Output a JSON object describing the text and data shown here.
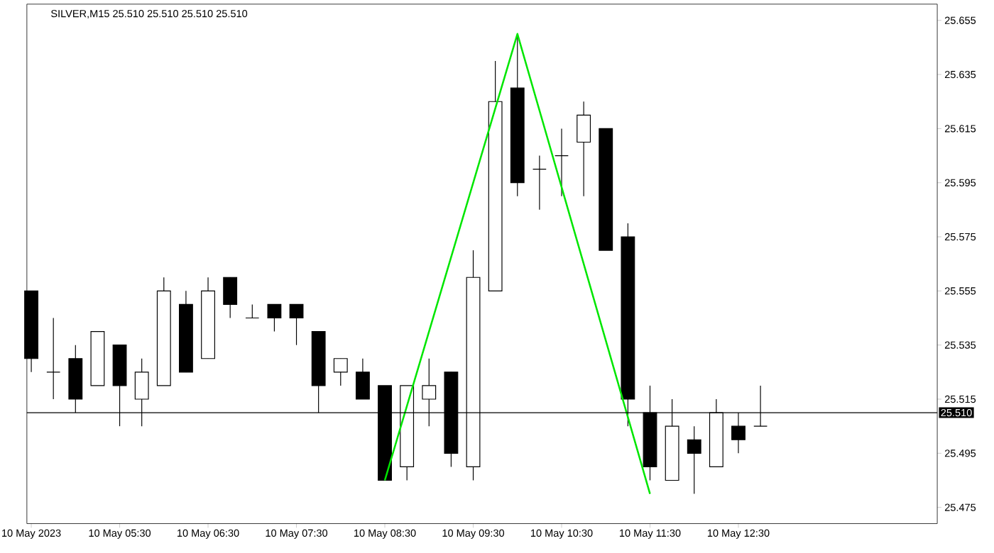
{
  "chart_data": {
    "type": "candlestick",
    "title": "SILVER,M15  25.510 25.510 25.510 25.510",
    "xlim": [
      "2023-05-10T04:27",
      "2023-05-10T14:45"
    ],
    "ylim": [
      25.469,
      25.661
    ],
    "xticks": [
      {
        "value": "2023-05-10T04:30",
        "label": "10 May 2023"
      },
      {
        "value": "2023-05-10T05:30",
        "label": "10 May 05:30"
      },
      {
        "value": "2023-05-10T06:30",
        "label": "10 May 06:30"
      },
      {
        "value": "2023-05-10T07:30",
        "label": "10 May 07:30"
      },
      {
        "value": "2023-05-10T08:30",
        "label": "10 May 08:30"
      },
      {
        "value": "2023-05-10T09:30",
        "label": "10 May 09:30"
      },
      {
        "value": "2023-05-10T10:30",
        "label": "10 May 10:30"
      },
      {
        "value": "2023-05-10T11:30",
        "label": "10 May 11:30"
      },
      {
        "value": "2023-05-10T12:30",
        "label": "10 May 12:30"
      }
    ],
    "yticks": [
      25.475,
      25.495,
      25.515,
      25.535,
      25.555,
      25.575,
      25.595,
      25.615,
      25.635,
      25.655
    ],
    "ref_lines": [
      {
        "axis": "y",
        "value": 25.51,
        "label": "25.510"
      }
    ],
    "series": [
      {
        "type": "line",
        "color": "#00e600",
        "x": [
          "2023-05-10T08:30",
          "2023-05-10T10:00",
          "2023-05-10T11:30"
        ],
        "values": [
          25.485,
          25.65,
          25.48
        ]
      },
      {
        "x": [
          "2023-05-10T04:30",
          "2023-05-10T04:45",
          "2023-05-10T05:00",
          "2023-05-10T05:15",
          "2023-05-10T05:30",
          "2023-05-10T05:45",
          "2023-05-10T06:00",
          "2023-05-10T06:15",
          "2023-05-10T06:30",
          "2023-05-10T06:45",
          "2023-05-10T07:00",
          "2023-05-10T07:15",
          "2023-05-10T07:30",
          "2023-05-10T07:45",
          "2023-05-10T08:00",
          "2023-05-10T08:15",
          "2023-05-10T08:30",
          "2023-05-10T08:45",
          "2023-05-10T09:00",
          "2023-05-10T09:15",
          "2023-05-10T09:30",
          "2023-05-10T09:45",
          "2023-05-10T10:00",
          "2023-05-10T10:15",
          "2023-05-10T10:30",
          "2023-05-10T10:45",
          "2023-05-10T11:00",
          "2023-05-10T11:15",
          "2023-05-10T11:30",
          "2023-05-10T11:45",
          "2023-05-10T12:00",
          "2023-05-10T12:15",
          "2023-05-10T12:30",
          "2023-05-10T12:45"
        ],
        "ohlc": [
          [
            25.555,
            25.555,
            25.525,
            25.53
          ],
          [
            25.525,
            25.545,
            25.515,
            25.525
          ],
          [
            25.53,
            25.535,
            25.51,
            25.515
          ],
          [
            25.52,
            25.54,
            25.52,
            25.54
          ],
          [
            25.535,
            25.535,
            25.505,
            25.52
          ],
          [
            25.515,
            25.53,
            25.505,
            25.525
          ],
          [
            25.52,
            25.56,
            25.52,
            25.555
          ],
          [
            25.55,
            25.555,
            25.525,
            25.525
          ],
          [
            25.53,
            25.56,
            25.53,
            25.555
          ],
          [
            25.56,
            25.56,
            25.545,
            25.55
          ],
          [
            25.545,
            25.55,
            25.545,
            25.545
          ],
          [
            25.55,
            25.55,
            25.54,
            25.545
          ],
          [
            25.55,
            25.55,
            25.535,
            25.545
          ],
          [
            25.54,
            25.54,
            25.51,
            25.52
          ],
          [
            25.525,
            25.53,
            25.52,
            25.53
          ],
          [
            25.525,
            25.53,
            25.515,
            25.515
          ],
          [
            25.52,
            25.52,
            25.485,
            25.485
          ],
          [
            25.49,
            25.52,
            25.485,
            25.52
          ],
          [
            25.515,
            25.53,
            25.505,
            25.52
          ],
          [
            25.525,
            25.525,
            25.49,
            25.495
          ],
          [
            25.49,
            25.57,
            25.485,
            25.56
          ],
          [
            25.555,
            25.64,
            25.555,
            25.625
          ],
          [
            25.63,
            25.65,
            25.59,
            25.595
          ],
          [
            25.6,
            25.605,
            25.585,
            25.6
          ],
          [
            25.605,
            25.615,
            25.59,
            25.605
          ],
          [
            25.61,
            25.625,
            25.59,
            25.62
          ],
          [
            25.615,
            25.615,
            25.57,
            25.57
          ],
          [
            25.575,
            25.58,
            25.505,
            25.515
          ],
          [
            25.51,
            25.52,
            25.485,
            25.49
          ],
          [
            25.485,
            25.515,
            25.485,
            25.505
          ],
          [
            25.5,
            25.505,
            25.48,
            25.495
          ],
          [
            25.49,
            25.515,
            25.49,
            25.51
          ],
          [
            25.505,
            25.51,
            25.495,
            25.5
          ],
          [
            25.505,
            25.52,
            25.505,
            25.505
          ]
        ]
      }
    ]
  }
}
